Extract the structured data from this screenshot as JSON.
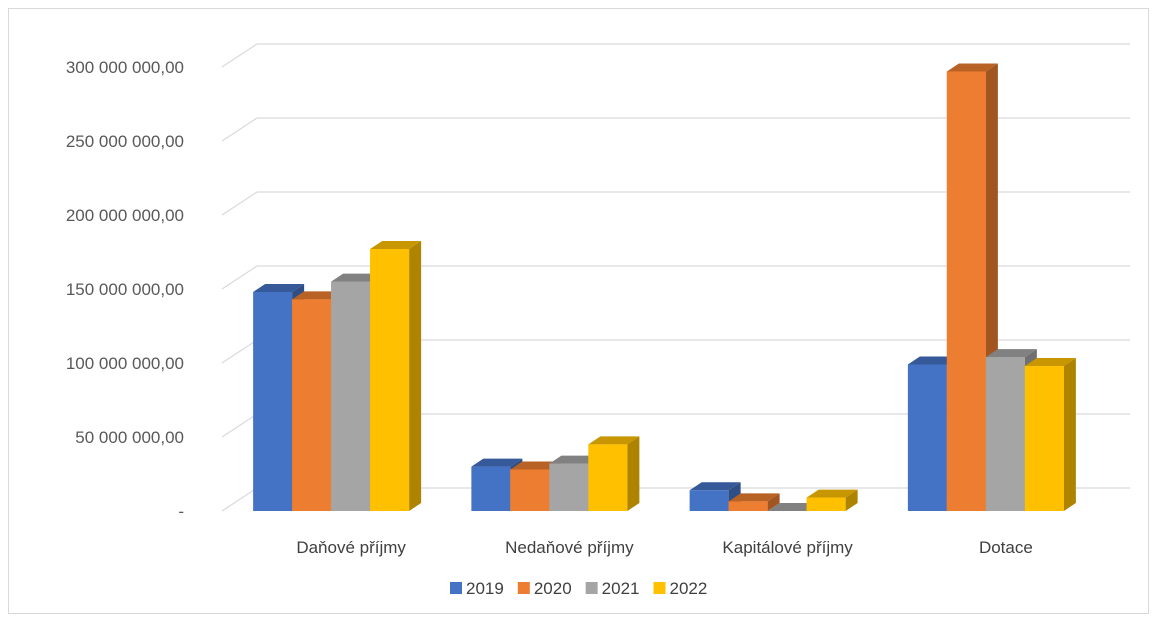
{
  "chart_data": {
    "type": "bar",
    "style": "3d-clustered-column",
    "categories": [
      "Daňové příjmy",
      "Nedaňové příjmy",
      "Kapitálové příjmy",
      "Dotace"
    ],
    "series": [
      {
        "name": "2019",
        "color": "#4472C4",
        "values": [
          148000000,
          30000000,
          14000000,
          99000000
        ]
      },
      {
        "name": "2020",
        "color": "#ED7D31",
        "values": [
          143000000,
          28000000,
          6500000,
          297000000
        ]
      },
      {
        "name": "2021",
        "color": "#A5A5A5",
        "values": [
          155000000,
          32000000,
          0,
          104000000
        ]
      },
      {
        "name": "2022",
        "color": "#FFC000",
        "values": [
          177000000,
          45000000,
          9000000,
          98000000
        ]
      }
    ],
    "ylim": [
      0,
      300000000
    ],
    "yticks": [
      0,
      50000000,
      100000000,
      150000000,
      200000000,
      250000000,
      300000000
    ],
    "ytick_labels": [
      "-",
      "50 000 000,00",
      "100 000 000,00",
      "150 000 000,00",
      "200 000 000,00",
      "250 000 000,00",
      "300 000 000,00"
    ],
    "grid": true,
    "legend_position": "bottom"
  }
}
